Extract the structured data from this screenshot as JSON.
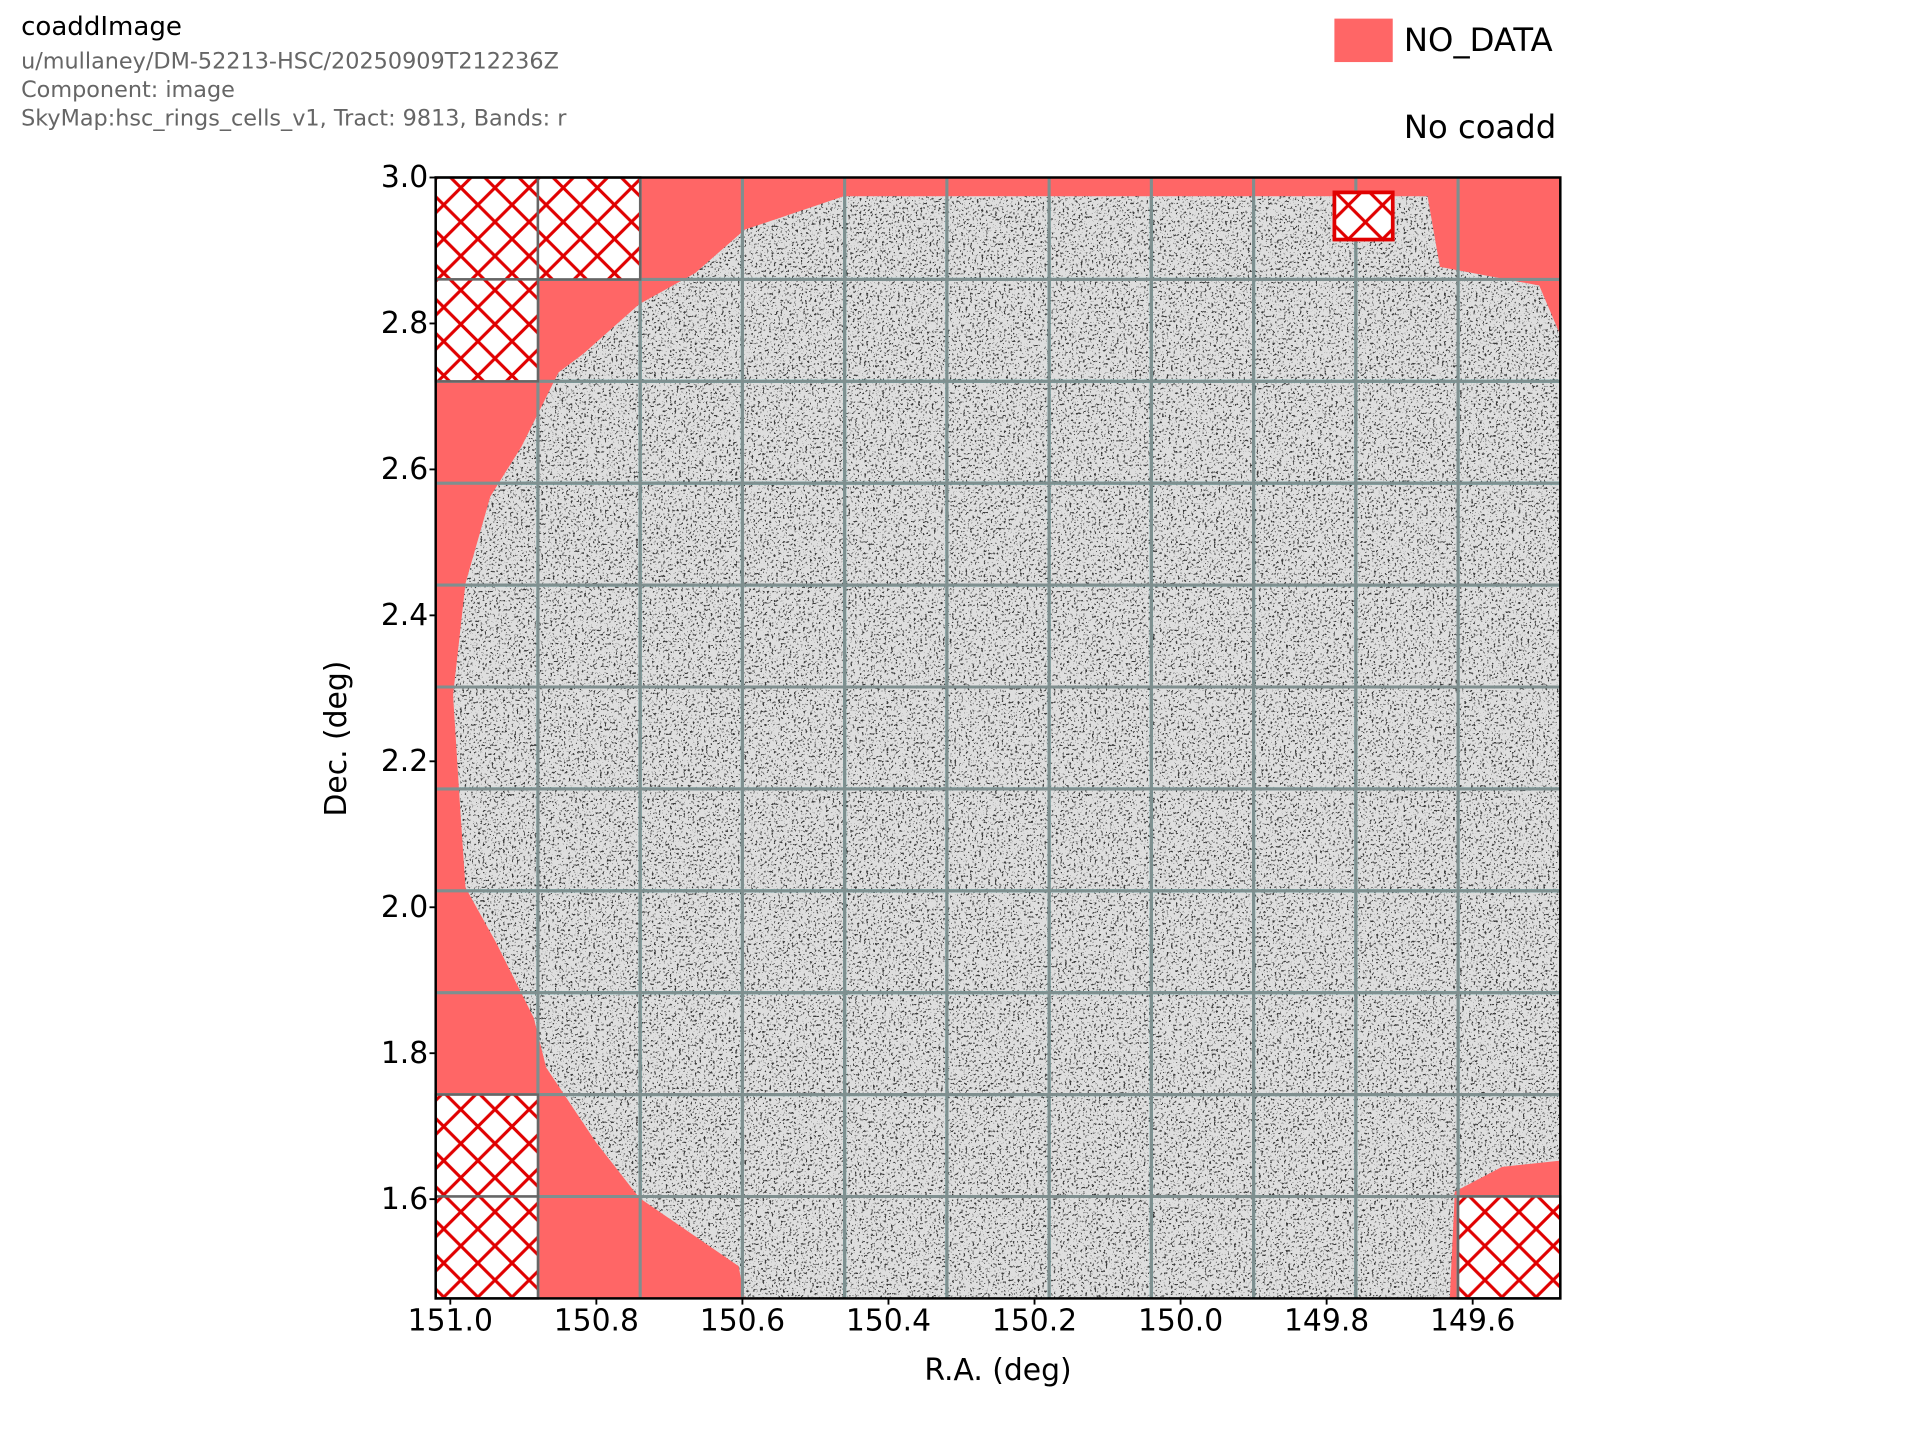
{
  "chart_data": {
    "type": "image",
    "title": "coaddImage",
    "subtitle": [
      "u/mullaney/DM-52213-HSC/20250909T212236Z",
      "Component: image",
      "SkyMap:hsc_rings_cells_v1, Tract: 9813, Bands: r"
    ],
    "xlabel": "R.A. (deg)",
    "ylabel": "Dec. (deg)",
    "xlim": [
      151.02,
      149.48
    ],
    "ylim": [
      1.464,
      3.0
    ],
    "xticks": [
      {
        "value": 151,
        "label": "151.0"
      },
      150.8,
      150.6,
      150.4,
      150.2,
      {
        "value": 150,
        "label": "150.0"
      },
      149.8,
      149.6
    ],
    "yticks": [
      1.6,
      1.8,
      {
        "value": 2,
        "label": "2.0"
      },
      2.2,
      2.4,
      2.6,
      2.8,
      {
        "value": 3,
        "label": "3.0"
      }
    ],
    "legend": [
      {
        "label": "NO_DATA",
        "color": "#ff6666"
      },
      {
        "label": "No coadd",
        "color": "#e00000",
        "hatch": true
      }
    ]
  }
}
